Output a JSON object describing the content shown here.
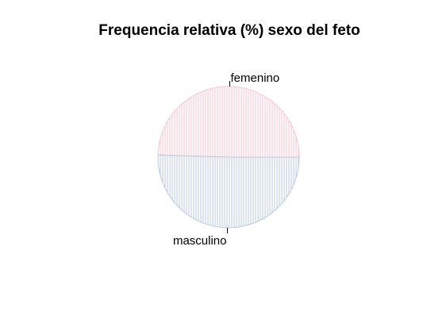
{
  "chart_data": {
    "type": "pie",
    "title": "Frequencia relativa (%) sexo del feto",
    "slices": [
      {
        "label": "femenino",
        "value": 49.5,
        "color": "#f9c3cc"
      },
      {
        "label": "masculino",
        "value": 50.5,
        "color": "#b8c9e3"
      }
    ],
    "start_angle_deg": 0,
    "direction": "counterclockwise",
    "hatched": true
  }
}
